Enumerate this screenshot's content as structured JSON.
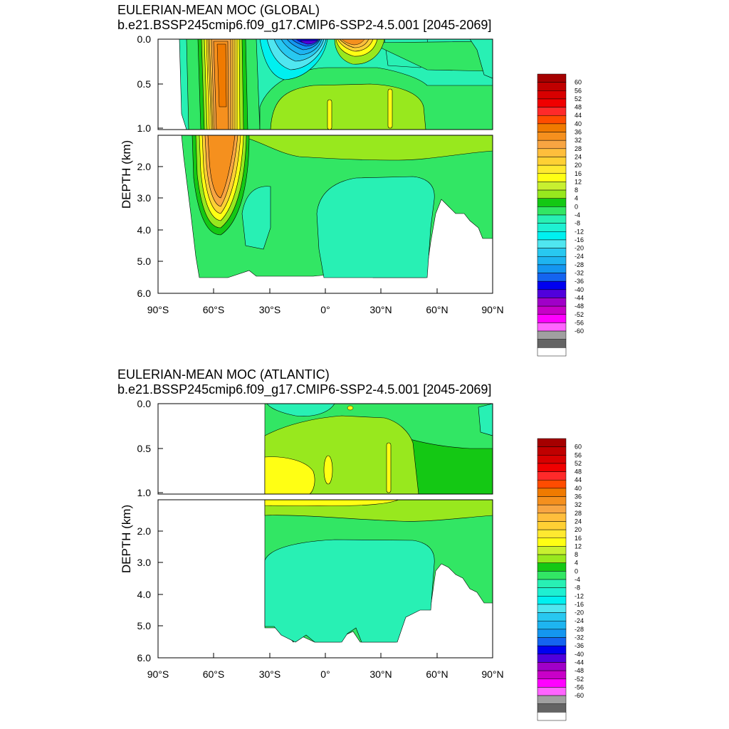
{
  "chart_data": [
    {
      "type": "heatmap",
      "subtype": "filled contour",
      "title": "EULERIAN-MEAN MOC (GLOBAL)",
      "subtitle": "b.e21.BSSP245cmip6.f09_g17.CMIP6-SSP2-4.5.001 [2045-2069]",
      "xlabel": "",
      "ylabel": "DEPTH (km)",
      "x_ticks": [
        "90°S",
        "60°S",
        "30°S",
        "0°",
        "30°N",
        "60°N",
        "90°N"
      ],
      "y_ticks_upper": [
        "0.0",
        "0.5",
        "1.0"
      ],
      "y_ticks_lower": [
        "2.0",
        "3.0",
        "4.0",
        "5.0",
        "6.0"
      ],
      "xlim": [
        -90,
        90
      ],
      "ylim_upper": [
        0.0,
        1.0
      ],
      "ylim_lower": [
        1.0,
        6.0
      ],
      "colorbar_levels": [
        "60",
        "56",
        "52",
        "48",
        "44",
        "40",
        "36",
        "32",
        "28",
        "24",
        "20",
        "16",
        "12",
        "8",
        "4",
        "0",
        "-4",
        "-8",
        "-12",
        "-16",
        "-20",
        "-24",
        "-28",
        "-32",
        "-36",
        "-40",
        "-44",
        "-48",
        "-52",
        "-56",
        "-60"
      ],
      "features": [
        {
          "name": "southern ocean cell",
          "lat_center": -50,
          "depth_km": [
            0.0,
            4.5
          ],
          "value": 36
        },
        {
          "name": "tropical surface negative cell",
          "lat_center": -12,
          "depth_km": [
            0.0,
            0.2
          ],
          "value": -40
        },
        {
          "name": "northern surface positive cell",
          "lat_center": 12,
          "depth_km": [
            0.0,
            0.2
          ],
          "value": 24
        },
        {
          "name": "abyssal negative cell",
          "lat_range": [
            0,
            55
          ],
          "depth_km": [
            2.3,
            5.5
          ],
          "value": -4
        }
      ]
    },
    {
      "type": "heatmap",
      "subtype": "filled contour",
      "title": "EULERIAN-MEAN MOC (ATLANTIC)",
      "subtitle": "b.e21.BSSP245cmip6.f09_g17.CMIP6-SSP2-4.5.001 [2045-2069]",
      "xlabel": "",
      "ylabel": "DEPTH (km)",
      "x_ticks": [
        "90°S",
        "60°S",
        "30°S",
        "0°",
        "30°N",
        "60°N",
        "90°N"
      ],
      "y_ticks_upper": [
        "0.0",
        "0.5",
        "1.0"
      ],
      "y_ticks_lower": [
        "2.0",
        "3.0",
        "4.0",
        "5.0",
        "6.0"
      ],
      "xlim": [
        -90,
        90
      ],
      "ylim_upper": [
        0.0,
        1.0
      ],
      "ylim_lower": [
        1.0,
        6.0
      ],
      "colorbar_levels": [
        "60",
        "56",
        "52",
        "48",
        "44",
        "40",
        "36",
        "32",
        "28",
        "24",
        "20",
        "16",
        "12",
        "8",
        "4",
        "0",
        "-4",
        "-8",
        "-12",
        "-16",
        "-20",
        "-24",
        "-28",
        "-32",
        "-36",
        "-40",
        "-44",
        "-48",
        "-52",
        "-56",
        "-60"
      ],
      "features": [
        {
          "name": "upper overturning cell",
          "lat_range": [
            -33,
            60
          ],
          "depth_km": [
            0.0,
            1.5
          ],
          "value": 12
        },
        {
          "name": "abyssal negative cell",
          "lat_range": [
            -33,
            70
          ],
          "depth_km": [
            2.3,
            5.5
          ],
          "value": -4
        }
      ]
    }
  ],
  "colors": {
    "cb": [
      "#a50000",
      "#c00000",
      "#d80000",
      "#f00000",
      "#ff2a2a",
      "#ff4c00",
      "#f07a00",
      "#f5901e",
      "#f8a542",
      "#ffbe3c",
      "#ffd034",
      "#ffe930",
      "#ffff14",
      "#c8f030",
      "#98e81e",
      "#14c814",
      "#32e664",
      "#28f0b4",
      "#1ef0d2",
      "#00f0f0",
      "#50e6f0",
      "#28c8f0",
      "#1eb4f0",
      "#1496f0",
      "#1464f0",
      "#0000f0",
      "#5000dc",
      "#a000c8",
      "#c800c8",
      "#ff00ff",
      "#ff64ff",
      "#a0a0a0",
      "#646464",
      "#ffffff"
    ]
  }
}
